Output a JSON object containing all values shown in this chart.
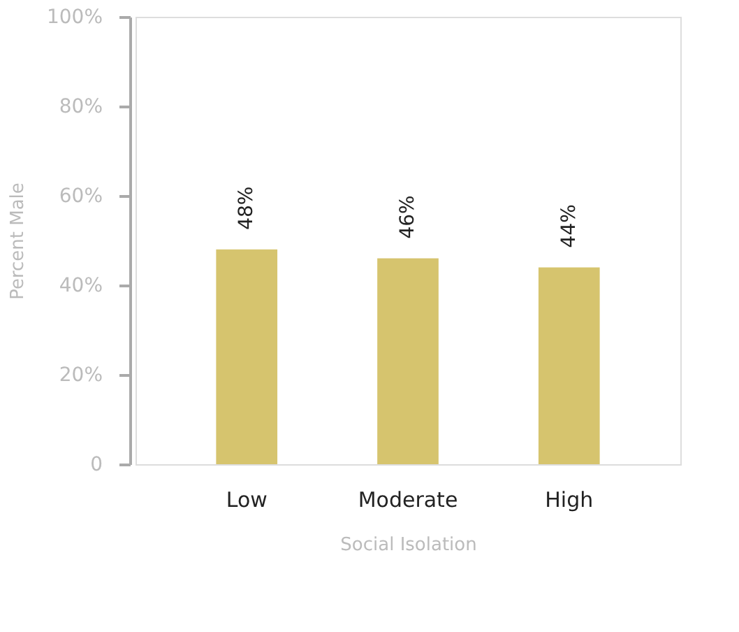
{
  "chart_data": {
    "type": "bar",
    "xlabel": "Social Isolation",
    "ylabel": "Percent Male",
    "categories": [
      "Low",
      "Moderate",
      "High"
    ],
    "values": [
      48,
      46,
      44
    ],
    "color": "#d6c46e",
    "value_labels": [
      "48%",
      "46%",
      "44%"
    ],
    "ylim": [
      0,
      100
    ],
    "yticks": [
      0,
      {
        "value": 20,
        "label": "20%"
      },
      {
        "value": 40,
        "label": "40%"
      },
      {
        "value": 60,
        "label": "60%"
      },
      {
        "value": 80,
        "label": "80%"
      },
      {
        "value": 100,
        "label": "100%"
      }
    ],
    "grid": false
  }
}
